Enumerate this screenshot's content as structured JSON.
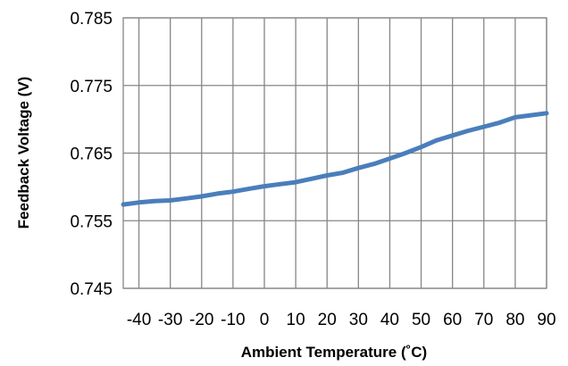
{
  "chart_data": {
    "type": "line",
    "title": "",
    "xlabel": "Ambient Temperature (˚C)",
    "ylabel": "Feedback Voltage (V)",
    "xlim": [
      -45,
      90
    ],
    "ylim": [
      0.745,
      0.785
    ],
    "x_ticks": [
      -40,
      -30,
      -20,
      -10,
      0,
      10,
      20,
      30,
      40,
      50,
      60,
      70,
      80,
      90
    ],
    "x_tick_labels": [
      "-40",
      "-30",
      "-20",
      "-10",
      "0",
      "10",
      "20",
      "30",
      "40",
      "50",
      "60",
      "70",
      "80",
      "90"
    ],
    "y_ticks": [
      0.745,
      0.755,
      0.765,
      0.775,
      0.785
    ],
    "y_tick_labels": [
      "0.745",
      "0.755",
      "0.765",
      "0.775",
      "0.785"
    ],
    "grid": true,
    "legend": "none",
    "series": [
      {
        "color": "#4a7ebb",
        "x": [
          -45,
          -40,
          -35,
          -30,
          -25,
          -20,
          -15,
          -10,
          -5,
          0,
          5,
          10,
          15,
          20,
          25,
          30,
          35,
          40,
          45,
          50,
          55,
          60,
          65,
          70,
          75,
          80,
          85,
          90
        ],
        "y": [
          0.7574,
          0.7577,
          0.7579,
          0.758,
          0.7583,
          0.7586,
          0.759,
          0.7593,
          0.7597,
          0.7601,
          0.7604,
          0.7607,
          0.7612,
          0.7617,
          0.7621,
          0.7628,
          0.7634,
          0.7642,
          0.765,
          0.7659,
          0.7669,
          0.7676,
          0.7683,
          0.7689,
          0.7695,
          0.7703,
          0.7706,
          0.7709
        ]
      }
    ]
  }
}
